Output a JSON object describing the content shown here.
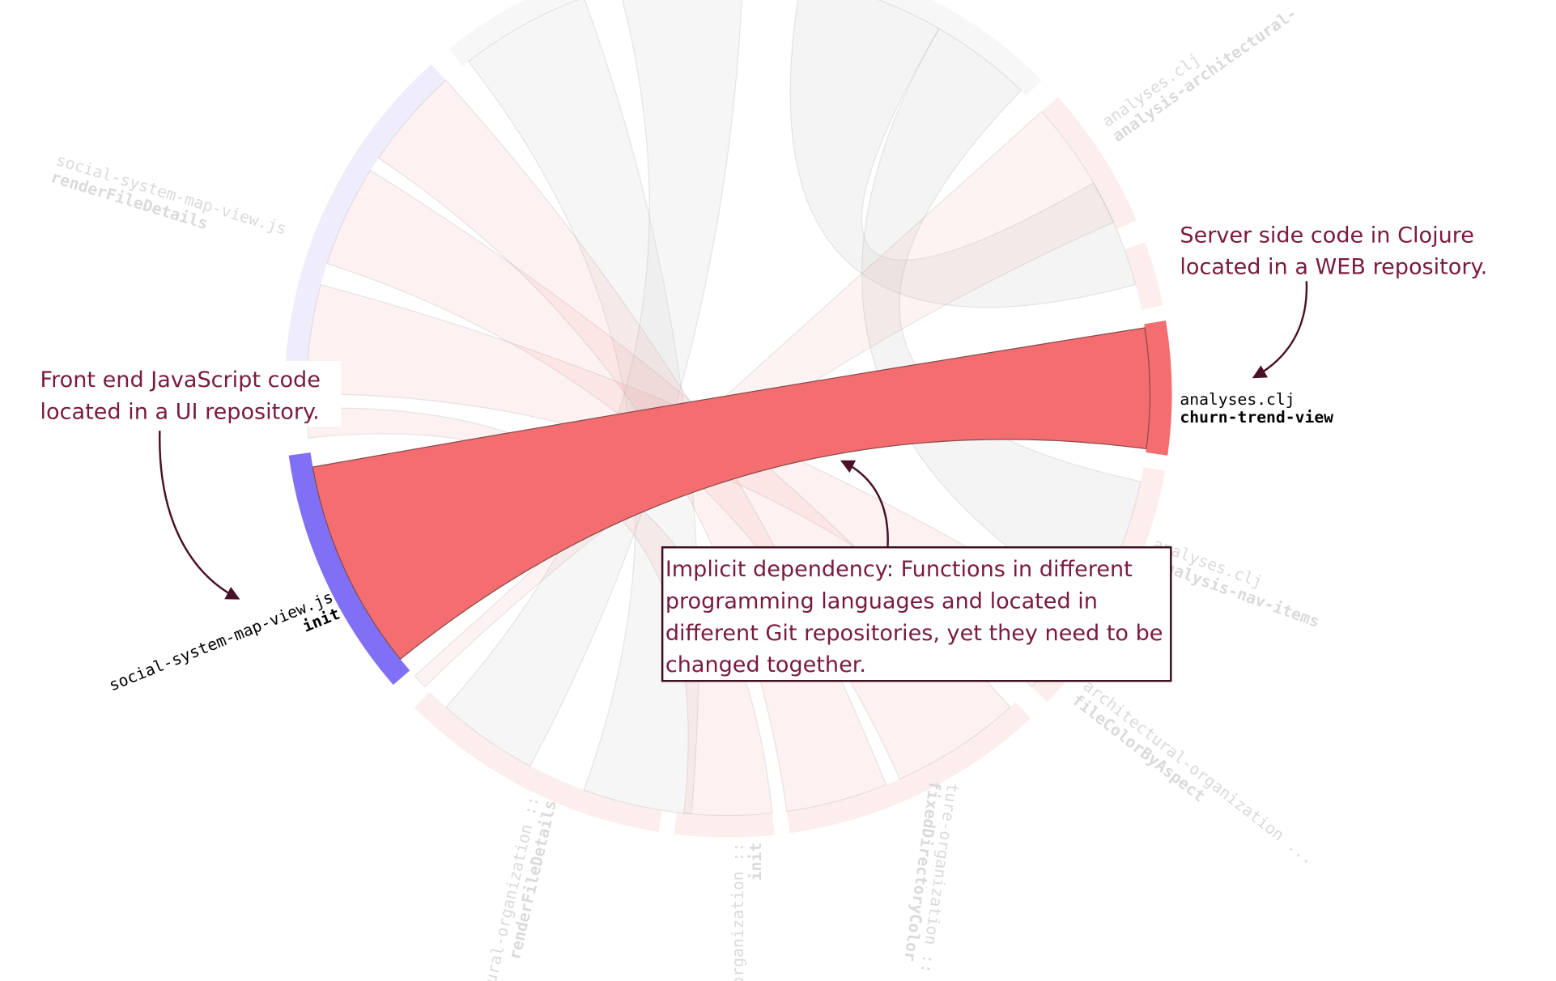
{
  "annotations": {
    "server": {
      "lines": [
        "Server side code in Clojure",
        "located in a WEB repository."
      ]
    },
    "frontend": {
      "lines": [
        "Front end JavaScript code",
        "located in a UI repository."
      ]
    },
    "dependency": {
      "lines": [
        "Implicit dependency: Functions in different",
        "programming languages and located in",
        "different Git repositories, yet they need to be",
        "changed together."
      ]
    }
  },
  "highlighted": {
    "ui": {
      "file": "social-system-map-view.js",
      "function": "init"
    },
    "web": {
      "file": "analyses.clj",
      "function": "churn-trend-view"
    }
  },
  "faded_labels": [
    {
      "file": "social-system-map-view.js",
      "function": "renderFileDetails"
    },
    {
      "file": "analyses.clj",
      "function": "analysis-architectural-"
    },
    {
      "file": "analyses.clj",
      "function": "-analysis-nav-items"
    },
    {
      "file": "architectural-organization ...",
      "function": "fileColorByAspect"
    },
    {
      "file": "tural-organization ::",
      "function": "renderFileDetails"
    },
    {
      "file": "organization ::",
      "function": "init"
    },
    {
      "file": "ture-organization ::",
      "function": "fixedDirectoryColor"
    }
  ]
}
